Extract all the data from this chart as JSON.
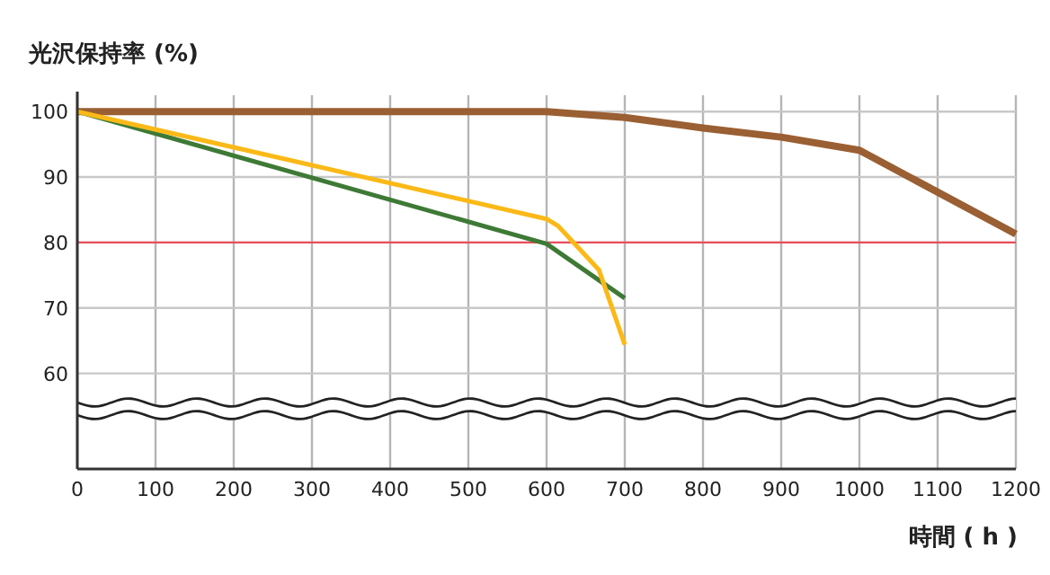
{
  "chart_data": {
    "type": "line",
    "ylabel": "光沢保持率 (%)",
    "xlabel": "時間 ( h )",
    "xlim": [
      0,
      1200
    ],
    "xticks": [
      0,
      100,
      200,
      300,
      400,
      500,
      600,
      700,
      800,
      900,
      1000,
      1100,
      1200
    ],
    "ylim": [
      45.4,
      102.5
    ],
    "yticks": [
      60,
      70,
      80,
      90,
      100
    ],
    "grid": true,
    "line_style": "solid",
    "marker": "none",
    "ref_lines": [
      {
        "axis": "y",
        "value": 80,
        "color": "#e8505b"
      }
    ],
    "series": [
      {
        "color": "#9a5f32",
        "x": [
          0,
          600,
          700,
          800,
          900,
          1000,
          1200
        ],
        "values": [
          100,
          100,
          99.1,
          97.5,
          96.1,
          94.1,
          81.3
        ]
      },
      {
        "color": "#3e7a36",
        "x": [
          0,
          600,
          700
        ],
        "values": [
          100,
          79.8,
          71.5
        ]
      },
      {
        "color": "#fbb917",
        "x": [
          0,
          600,
          615,
          667,
          700
        ],
        "values": [
          100,
          83.6,
          82.5,
          75.8,
          64.4
        ]
      }
    ]
  }
}
